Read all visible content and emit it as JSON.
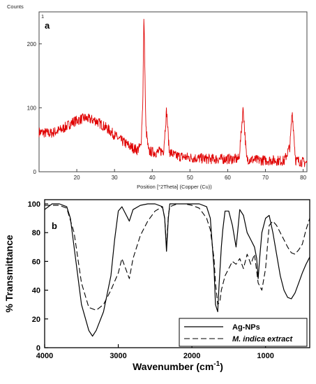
{
  "figure": {
    "panel_a": {
      "corner_label": "Counts",
      "corner_index": "1",
      "panel_label": "a",
      "xlabel": "Position [°2Theta] (Copper (Cu))"
    },
    "panel_b": {
      "panel_label": "b",
      "ylabel": "% Transmittance",
      "xlabel_main": "Wavenumber (cm",
      "xlabel_sup": "-1",
      "xlabel_end": ")"
    }
  },
  "chart_data": [
    {
      "type": "line",
      "title": "",
      "xlabel": "Position [°2Theta] (Copper (Cu))",
      "ylabel": "Counts",
      "xlim": [
        10,
        81
      ],
      "ylim": [
        0,
        250
      ],
      "x_ticks": [
        20,
        30,
        40,
        50,
        60,
        70,
        80
      ],
      "y_ticks": [
        0,
        100,
        200
      ],
      "grid": false,
      "series": [
        {
          "color": "#e00000",
          "x": [
            10,
            13,
            16,
            19,
            22,
            25,
            28,
            31,
            34,
            36,
            37,
            37.5,
            37.8,
            38.3,
            39,
            41,
            43,
            43.8,
            44.5,
            46,
            50,
            55,
            60,
            63,
            64.1,
            65,
            68,
            72,
            75,
            76.5,
            77.1,
            78,
            80,
            81
          ],
          "y": [
            62,
            60,
            66,
            78,
            84,
            80,
            68,
            52,
            40,
            34,
            40,
            110,
            248,
            70,
            32,
            30,
            33,
            97,
            32,
            25,
            22,
            20,
            20,
            20,
            100,
            20,
            18,
            18,
            17,
            40,
            95,
            18,
            15,
            14
          ],
          "noise_amplitude": 8
        }
      ]
    },
    {
      "type": "line",
      "title": "",
      "xlabel": "Wavenumber (cm-1)",
      "ylabel": "% Transmittance",
      "xlim": [
        4000,
        400
      ],
      "ylim": [
        0,
        100
      ],
      "x_ticks": [
        4000,
        3000,
        2000,
        1000
      ],
      "y_ticks": [
        0,
        20,
        40,
        60,
        80,
        100
      ],
      "grid": false,
      "legend_position": "bottom-right",
      "series": [
        {
          "name": "Ag-NPs",
          "dash": "solid",
          "x": [
            4000,
            3900,
            3800,
            3700,
            3650,
            3600,
            3500,
            3400,
            3350,
            3300,
            3200,
            3100,
            3050,
            3000,
            2950,
            2900,
            2850,
            2800,
            2700,
            2600,
            2500,
            2400,
            2370,
            2345,
            2320,
            2300,
            2200,
            2100,
            2000,
            1900,
            1800,
            1750,
            1700,
            1680,
            1650,
            1630,
            1600,
            1580,
            1550,
            1500,
            1450,
            1400,
            1380,
            1350,
            1300,
            1250,
            1200,
            1150,
            1120,
            1100,
            1080,
            1050,
            1000,
            950,
            900,
            850,
            800,
            750,
            700,
            650,
            600,
            550,
            500,
            450,
            400
          ],
          "y": [
            96,
            100,
            100,
            98,
            90,
            70,
            30,
            12,
            8,
            12,
            25,
            50,
            75,
            95,
            98,
            93,
            88,
            96,
            99,
            100,
            100,
            98,
            90,
            67,
            90,
            100,
            100,
            100,
            100,
            100,
            98,
            90,
            55,
            30,
            25,
            45,
            70,
            82,
            95,
            95,
            85,
            70,
            80,
            96,
            92,
            80,
            75,
            70,
            62,
            48,
            62,
            80,
            90,
            92,
            80,
            65,
            50,
            40,
            35,
            34,
            38,
            45,
            52,
            58,
            63
          ]
        },
        {
          "name": "M. indica extract",
          "dash": "dashed",
          "x": [
            4000,
            3900,
            3800,
            3700,
            3600,
            3500,
            3400,
            3300,
            3200,
            3100,
            3000,
            2950,
            2900,
            2850,
            2800,
            2700,
            2600,
            2500,
            2400,
            2370,
            2345,
            2320,
            2300,
            2200,
            2100,
            2000,
            1900,
            1800,
            1750,
            1700,
            1680,
            1650,
            1620,
            1600,
            1550,
            1500,
            1450,
            1400,
            1350,
            1300,
            1250,
            1200,
            1150,
            1100,
            1050,
            1000,
            950,
            900,
            850,
            800,
            750,
            700,
            650,
            600,
            550,
            500,
            450,
            400
          ],
          "y": [
            99,
            99,
            99,
            97,
            80,
            45,
            28,
            26,
            30,
            40,
            52,
            62,
            55,
            48,
            62,
            78,
            88,
            95,
            98,
            90,
            70,
            92,
            98,
            100,
            100,
            99,
            97,
            90,
            82,
            62,
            45,
            30,
            32,
            40,
            50,
            55,
            60,
            58,
            62,
            55,
            65,
            58,
            65,
            45,
            40,
            55,
            85,
            88,
            85,
            80,
            75,
            70,
            66,
            65,
            68,
            72,
            82,
            90
          ]
        }
      ]
    }
  ]
}
